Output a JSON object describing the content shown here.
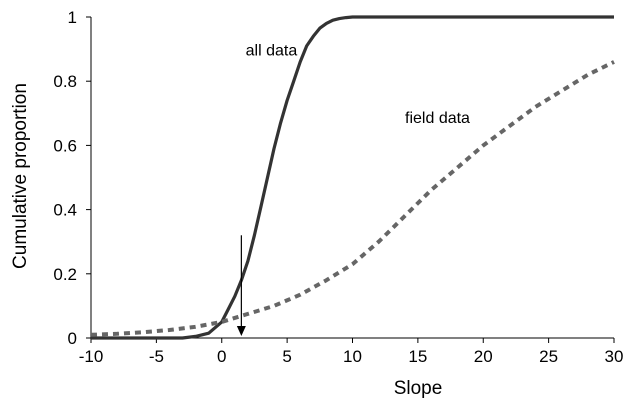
{
  "chart_data": {
    "type": "line",
    "title": "",
    "xlabel": "Slope",
    "ylabel": "Cumulative proportion",
    "xlim": [
      -10,
      30
    ],
    "ylim": [
      0,
      1
    ],
    "xticks": [
      -10,
      -5,
      0,
      5,
      10,
      15,
      20,
      25,
      30
    ],
    "yticks": [
      0,
      0.2,
      0.4,
      0.6,
      0.8,
      1
    ],
    "grid": false,
    "legend": "none",
    "series": [
      {
        "name": "all data",
        "style": "solid",
        "color": "#333333",
        "x": [
          -10,
          -5,
          -3,
          -2,
          -1,
          0,
          0.5,
          1,
          1.5,
          2,
          2.5,
          3,
          3.5,
          4,
          4.5,
          5,
          5.5,
          6,
          6.5,
          7,
          7.5,
          8,
          8.5,
          9,
          9.5,
          10,
          11,
          15,
          20,
          25,
          30
        ],
        "y": [
          0,
          0,
          0,
          0.005,
          0.015,
          0.05,
          0.09,
          0.13,
          0.18,
          0.24,
          0.32,
          0.41,
          0.5,
          0.59,
          0.67,
          0.74,
          0.8,
          0.86,
          0.91,
          0.94,
          0.965,
          0.98,
          0.99,
          0.995,
          0.998,
          1,
          1,
          1,
          1,
          1,
          1
        ]
      },
      {
        "name": "field data",
        "style": "dashed",
        "color": "#666666",
        "x": [
          -10,
          -8,
          -6,
          -4,
          -2,
          0,
          2,
          4,
          6,
          8,
          10,
          12,
          14,
          16,
          18,
          20,
          22,
          24,
          26,
          28,
          30
        ],
        "y": [
          0.01,
          0.013,
          0.018,
          0.025,
          0.035,
          0.05,
          0.075,
          0.1,
          0.135,
          0.18,
          0.23,
          0.3,
          0.38,
          0.46,
          0.53,
          0.6,
          0.66,
          0.72,
          0.77,
          0.82,
          0.86
        ]
      }
    ],
    "annotations": [
      {
        "text": "all data",
        "x": 3.8,
        "y": 0.88
      },
      {
        "text": "field data",
        "x": 16.5,
        "y": 0.67
      }
    ],
    "arrow": {
      "x": 1.5,
      "y_from": 0.32,
      "y_to": 0.0
    }
  }
}
